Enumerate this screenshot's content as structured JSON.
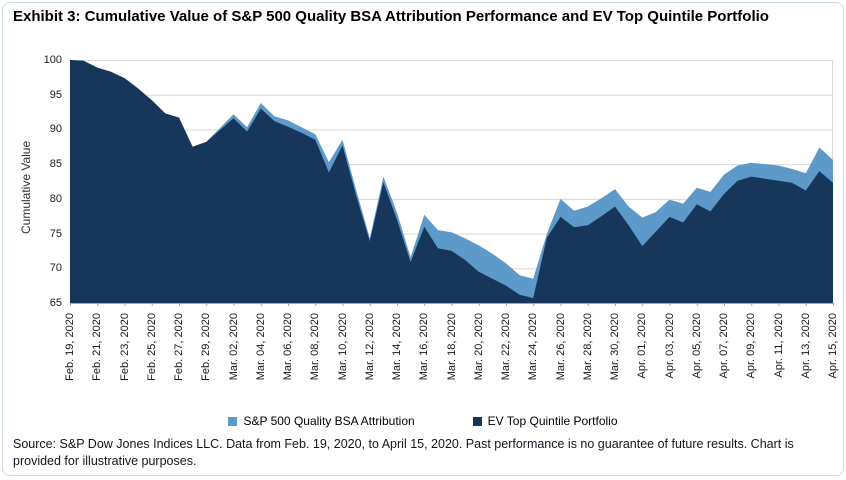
{
  "title": "Exhibit 3: Cumulative Value of S&P 500 Quality BSA Attribution Performance and EV Top Quintile Portfolio",
  "source_text": "Source: S&P Dow Jones Indices LLC. Data from Feb. 19, 2020, to April 15, 2020. Past performance is no guarantee of future results. Chart is provided for illustrative purposes.",
  "colors": {
    "light_series": "#5E9AC9",
    "dark_series": "#16365C",
    "gridline": "#d9d9d9",
    "axis": "#a6a6a6",
    "frame_border": "#cdd9e1"
  },
  "legend": {
    "items": [
      {
        "label": "S&P 500 Quality BSA Attribution",
        "color": "#5E9AC9"
      },
      {
        "label": "EV Top Quintile Portfolio",
        "color": "#16365C"
      }
    ]
  },
  "chart_data": {
    "type": "area",
    "title": "Exhibit 3: Cumulative Value of S&P 500 Quality BSA Attribution Performance and EV Top Quintile Portfolio",
    "xlabel": "",
    "ylabel": "Cumulative Value",
    "ylim": [
      65,
      100
    ],
    "y_ticks": [
      65,
      70,
      75,
      80,
      85,
      90,
      95,
      100
    ],
    "grid": "horizontal",
    "legend_position": "bottom",
    "x_tick_labels": [
      "Feb. 19, 2020",
      "Feb. 21, 2020",
      "Feb. 23, 2020",
      "Feb. 25, 2020",
      "Feb. 27, 2020",
      "Feb. 29, 2020",
      "Mar. 02, 2020",
      "Mar. 04, 2020",
      "Mar. 06, 2020",
      "Mar. 08, 2020",
      "Mar. 10, 2020",
      "Mar. 12, 2020",
      "Mar. 14, 2020",
      "Mar. 16, 2020",
      "Mar. 18, 2020",
      "Mar. 20, 2020",
      "Mar. 22, 2020",
      "Mar. 24, 2020",
      "Mar. 26, 2020",
      "Mar. 28, 2020",
      "Mar. 30, 2020",
      "Apr. 01, 2020",
      "Apr. 03, 2020",
      "Apr. 05, 2020",
      "Apr. 07, 2020",
      "Apr. 09, 2020",
      "Apr. 11, 2020",
      "Apr. 13, 2020",
      "Apr. 15, 2020"
    ],
    "x": [
      "Feb. 19, 2020",
      "Feb. 20, 2020",
      "Feb. 21, 2020",
      "Feb. 22, 2020",
      "Feb. 23, 2020",
      "Feb. 24, 2020",
      "Feb. 25, 2020",
      "Feb. 26, 2020",
      "Feb. 27, 2020",
      "Feb. 28, 2020",
      "Feb. 29, 2020",
      "Mar. 01, 2020",
      "Mar. 02, 2020",
      "Mar. 03, 2020",
      "Mar. 04, 2020",
      "Mar. 05, 2020",
      "Mar. 06, 2020",
      "Mar. 07, 2020",
      "Mar. 08, 2020",
      "Mar. 09, 2020",
      "Mar. 10, 2020",
      "Mar. 11, 2020",
      "Mar. 12, 2020",
      "Mar. 13, 2020",
      "Mar. 14, 2020",
      "Mar. 15, 2020",
      "Mar. 16, 2020",
      "Mar. 17, 2020",
      "Mar. 18, 2020",
      "Mar. 19, 2020",
      "Mar. 20, 2020",
      "Mar. 21, 2020",
      "Mar. 22, 2020",
      "Mar. 23, 2020",
      "Mar. 24, 2020",
      "Mar. 25, 2020",
      "Mar. 26, 2020",
      "Mar. 27, 2020",
      "Mar. 28, 2020",
      "Mar. 29, 2020",
      "Mar. 30, 2020",
      "Mar. 31, 2020",
      "Apr. 01, 2020",
      "Apr. 02, 2020",
      "Apr. 03, 2020",
      "Apr. 04, 2020",
      "Apr. 05, 2020",
      "Apr. 06, 2020",
      "Apr. 07, 2020",
      "Apr. 08, 2020",
      "Apr. 09, 2020",
      "Apr. 10, 2020",
      "Apr. 11, 2020",
      "Apr. 12, 2020",
      "Apr. 13, 2020",
      "Apr. 14, 2020",
      "Apr. 15, 2020"
    ],
    "series": [
      {
        "name": "S&P 500 Quality BSA Attribution",
        "color": "#5E9AC9",
        "values": [
          100,
          99.9,
          98.9,
          98.3,
          97.4,
          95.9,
          94.2,
          92.3,
          91.7,
          87.5,
          88.2,
          90.2,
          92.2,
          90.3,
          93.8,
          91.9,
          91.3,
          90.3,
          89.3,
          85.3,
          88.5,
          81.3,
          74.3,
          83.2,
          78.0,
          71.6,
          77.7,
          75.5,
          75.2,
          74.3,
          73.3,
          72.1,
          70.7,
          69.0,
          68.5,
          75.0,
          80.0,
          78.3,
          78.9,
          80.1,
          81.4,
          78.9,
          77.3,
          78.1,
          79.9,
          79.3,
          81.6,
          81.0,
          83.5,
          84.8,
          85.2,
          85.0,
          84.8,
          84.3,
          83.7,
          87.4,
          85.6
        ]
      },
      {
        "name": "EV Top Quintile Portfolio",
        "color": "#16365C",
        "values": [
          100,
          99.9,
          98.9,
          98.3,
          97.4,
          95.9,
          94.2,
          92.3,
          91.7,
          87.5,
          88.2,
          89.9,
          91.6,
          89.7,
          93.0,
          91.2,
          90.4,
          89.5,
          88.5,
          83.8,
          87.7,
          80.5,
          73.9,
          82.4,
          77.0,
          70.9,
          76.0,
          72.9,
          72.5,
          71.2,
          69.5,
          68.5,
          67.5,
          66.2,
          65.7,
          74.4,
          77.4,
          75.9,
          76.2,
          77.5,
          78.9,
          76.2,
          73.2,
          75.3,
          77.4,
          76.6,
          79.2,
          78.2,
          80.7,
          82.6,
          83.2,
          82.9,
          82.6,
          82.3,
          81.2,
          84.0,
          82.3
        ]
      }
    ]
  }
}
